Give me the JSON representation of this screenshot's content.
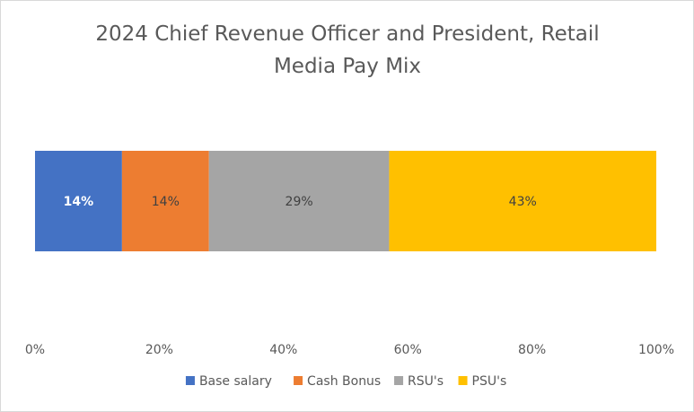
{
  "chart_data": {
    "type": "bar",
    "orientation": "horizontal",
    "stacked": "percent",
    "title_lines": [
      "2024 Chief Revenue Officer and President, Retail",
      "Media Pay Mix"
    ],
    "title": "2024 Chief Revenue Officer and President, Retail Media Pay Mix",
    "categories": [
      ""
    ],
    "series": [
      {
        "name": "Base salary",
        "values": [
          14
        ],
        "label": "14%",
        "color": "#4472C4",
        "label_color": "#ffffff",
        "label_bold": true
      },
      {
        "name": "Cash Bonus",
        "values": [
          14
        ],
        "label": "14%",
        "color": "#ED7D31",
        "label_color": "#404040",
        "label_bold": false
      },
      {
        "name": "RSU's",
        "values": [
          29
        ],
        "label": "29%",
        "color": "#A5A5A5",
        "label_color": "#404040",
        "label_bold": false
      },
      {
        "name": "PSU's",
        "values": [
          43
        ],
        "label": "43%",
        "color": "#FFC000",
        "label_color": "#404040",
        "label_bold": false
      }
    ],
    "x_ticks": [
      "0%",
      "20%",
      "40%",
      "60%",
      "80%",
      "100%"
    ],
    "xlim": [
      0,
      100
    ],
    "xlabel": "",
    "ylabel": "",
    "grid": false,
    "legend_position": "bottom"
  }
}
